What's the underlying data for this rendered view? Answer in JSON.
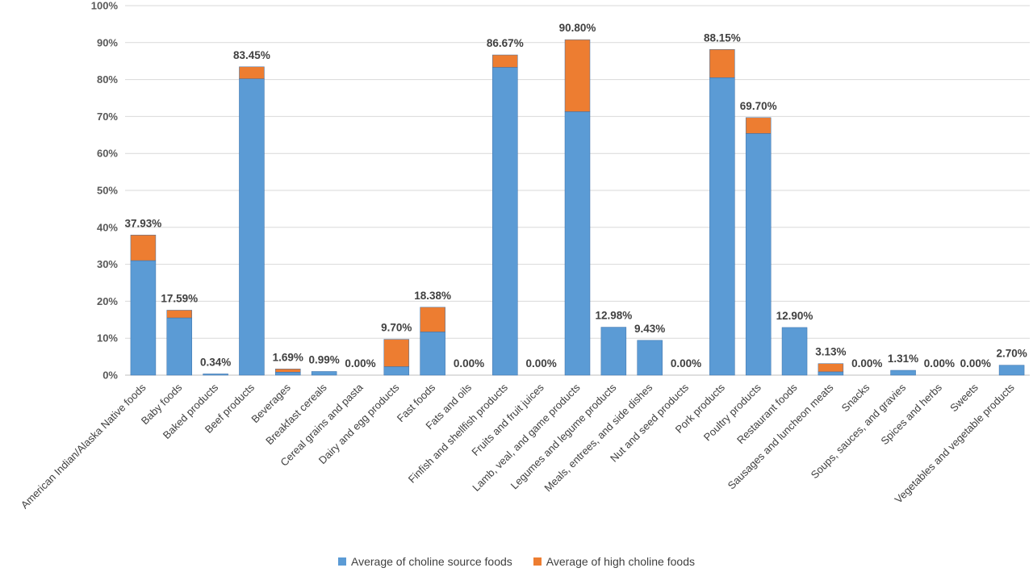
{
  "chart_data": {
    "type": "bar",
    "stacked": true,
    "categories": [
      "American Indian/Alaska Native foods",
      "Baby foods",
      "Baked products",
      "Beef products",
      "Beverages",
      "Breakfast cereals",
      "Cereal grains and pasta",
      "Dairy and egg products",
      "Fast foods",
      "Fats and oils",
      "Finfish and shellfish products",
      "Fruits and fruit juices",
      "Lamb, veal, and game products",
      "Legumes and legume products",
      "Meals, entrees, and side dishes",
      "Nut and seed products",
      "Pork products",
      "Poultry products",
      "Restaurant foods",
      "Sausages and luncheon meats",
      "Snacks",
      "Soups, sauces, and gravies",
      "Spices and herbs",
      "Sweets",
      "Vegetables and vegetable products"
    ],
    "series": [
      {
        "name": "Average of choline source foods",
        "color": "#5B9BD5",
        "values": [
          31.0,
          15.5,
          0.34,
          80.2,
          0.8,
          0.99,
          0.0,
          2.3,
          11.7,
          0.0,
          83.3,
          0.0,
          71.3,
          12.98,
          9.43,
          0.0,
          80.5,
          65.4,
          12.9,
          0.9,
          0.0,
          1.31,
          0.0,
          0.0,
          2.7
        ]
      },
      {
        "name": "Average of high choline foods",
        "color": "#ED7D31",
        "values": [
          6.93,
          2.09,
          0.0,
          3.25,
          0.89,
          0.0,
          0.0,
          7.4,
          6.68,
          0.0,
          3.37,
          0.0,
          19.5,
          0.0,
          0.0,
          0.0,
          7.65,
          4.3,
          0.0,
          2.23,
          0.0,
          0.0,
          0.0,
          0.0,
          0.0
        ]
      }
    ],
    "data_labels": [
      "37.93%",
      "17.59%",
      "0.34%",
      "83.45%",
      "1.69%",
      "0.99%",
      "0.00%",
      "9.70%",
      "18.38%",
      "0.00%",
      "86.67%",
      "0.00%",
      "90.80%",
      "12.98%",
      "9.43%",
      "0.00%",
      "88.15%",
      "69.70%",
      "12.90%",
      "3.13%",
      "0.00%",
      "1.31%",
      "0.00%",
      "0.00%",
      "2.70%"
    ],
    "totals": [
      37.93,
      17.59,
      0.34,
      83.45,
      1.69,
      0.99,
      0.0,
      9.7,
      18.38,
      0.0,
      86.67,
      0.0,
      90.8,
      12.98,
      9.43,
      0.0,
      88.15,
      69.7,
      12.9,
      3.13,
      0.0,
      1.31,
      0.0,
      0.0,
      2.7
    ],
    "y_ticks": [
      "0%",
      "10%",
      "20%",
      "30%",
      "40%",
      "50%",
      "60%",
      "70%",
      "80%",
      "90%",
      "100%"
    ],
    "ylim": [
      0,
      100
    ],
    "title": "",
    "xlabel": "",
    "ylabel": "",
    "grid": true,
    "legend_position": "bottom"
  }
}
